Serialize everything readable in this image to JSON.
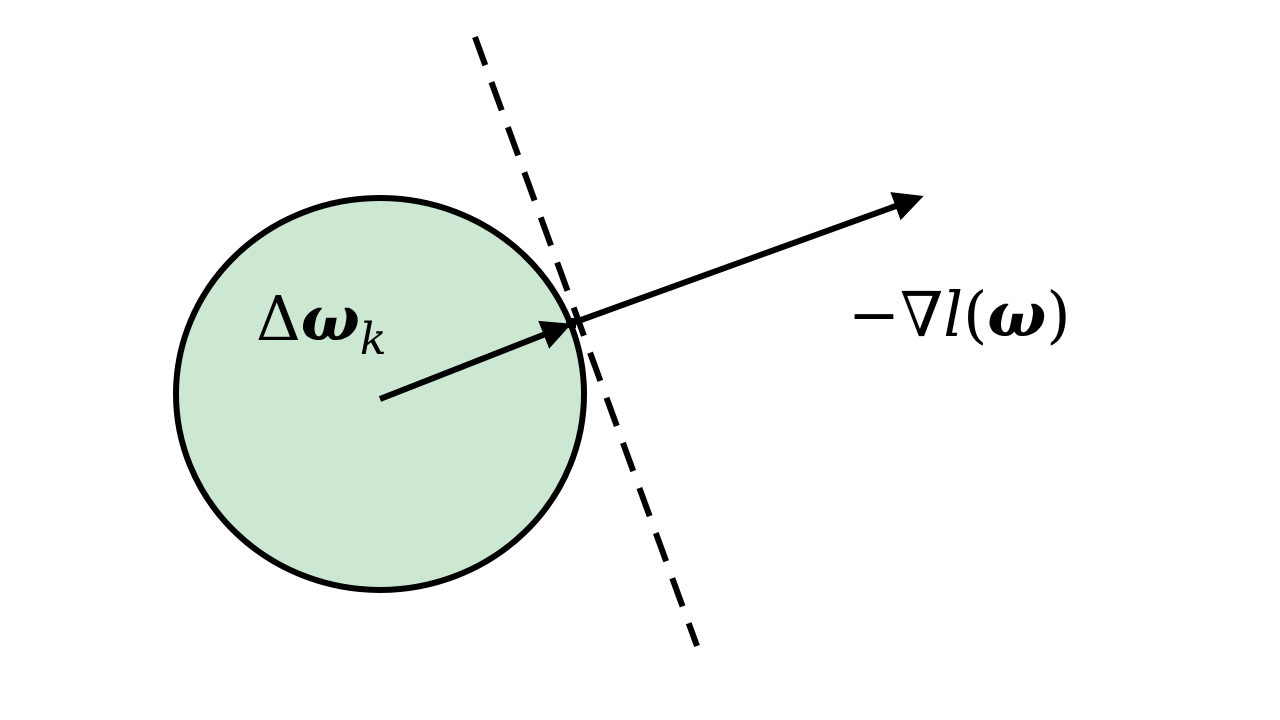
{
  "diagram": {
    "colors": {
      "region_fill": "#cde8d2",
      "stroke": "#000000",
      "background": "#ffffff"
    },
    "labels": {
      "step": {
        "delta": "Δ",
        "omega": "ω",
        "subscript": "k"
      },
      "gradient": {
        "minus": "−",
        "nabla": "∇",
        "func": "l",
        "open_paren": "(",
        "omega": "ω",
        "close_paren": ")"
      }
    }
  }
}
